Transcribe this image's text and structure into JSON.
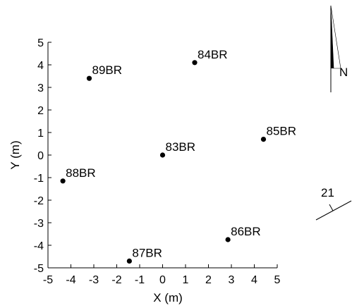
{
  "chart_data": {
    "type": "scatter",
    "xlabel": "X (m)",
    "ylabel": "Y (m)",
    "xlim": [
      -5,
      5
    ],
    "ylim": [
      -5,
      5
    ],
    "xticks": [
      "-5",
      "-4",
      "-3",
      "-2",
      "-1",
      "0",
      "1",
      "2",
      "3",
      "4",
      "5"
    ],
    "yticks": [
      "5",
      "4",
      "3",
      "2",
      "1",
      "0",
      "-1",
      "-2",
      "-3",
      "-4",
      "-5"
    ],
    "grid": false,
    "points": [
      {
        "label": "83BR",
        "x": 0.0,
        "y": 0.0
      },
      {
        "label": "84BR",
        "x": 1.4,
        "y": 4.1
      },
      {
        "label": "85BR",
        "x": 4.4,
        "y": 0.7
      },
      {
        "label": "86BR",
        "x": 2.85,
        "y": -3.75
      },
      {
        "label": "87BR",
        "x": -1.45,
        "y": -4.7
      },
      {
        "label": "88BR",
        "x": -4.35,
        "y": -1.15
      },
      {
        "label": "89BR",
        "x": -3.2,
        "y": 3.4
      }
    ],
    "north_arrow_label": "N",
    "strike_dip_label": "21",
    "marker_color": "#000000"
  }
}
